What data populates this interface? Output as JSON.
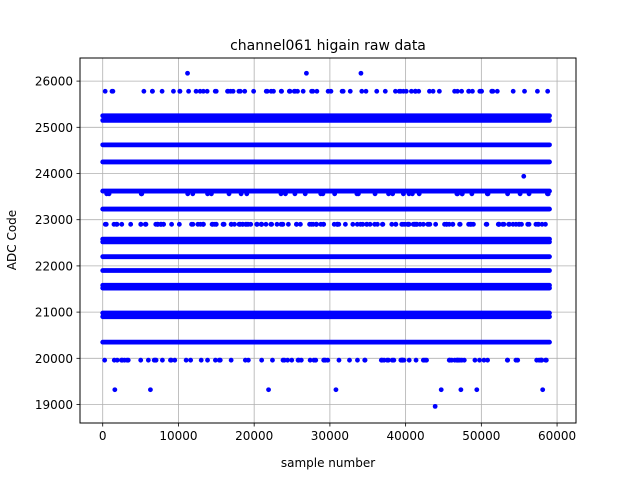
{
  "chart_data": {
    "type": "scatter",
    "title": "channel061 higain raw data",
    "xlabel": "sample number",
    "ylabel": "ADC Code",
    "xlim": [
      -3000,
      62500
    ],
    "ylim": [
      18600,
      26500
    ],
    "xticks": [
      0,
      10000,
      20000,
      30000,
      40000,
      50000,
      60000
    ],
    "yticks": [
      19000,
      20000,
      21000,
      22000,
      23000,
      24000,
      25000,
      26000
    ],
    "grid": true,
    "marker_color": "#0000ff",
    "series": [
      {
        "dense_bands": [
          {
            "y": 25250,
            "x_range": [
              0,
              59000
            ]
          },
          {
            "y": 25150,
            "x_range": [
              0,
              59000
            ]
          },
          {
            "y": 24620,
            "x_range": [
              0,
              59000
            ]
          },
          {
            "y": 24250,
            "x_range": [
              0,
              59000
            ]
          },
          {
            "y": 23620,
            "x_range": [
              0,
              59000
            ]
          },
          {
            "y": 23230,
            "x_range": [
              0,
              59000
            ]
          },
          {
            "y": 22580,
            "x_range": [
              0,
              59000
            ]
          },
          {
            "y": 22520,
            "x_range": [
              0,
              59000
            ]
          },
          {
            "y": 22200,
            "x_range": [
              0,
              59000
            ]
          },
          {
            "y": 21900,
            "x_range": [
              0,
              59000
            ]
          },
          {
            "y": 21580,
            "x_range": [
              0,
              59000
            ]
          },
          {
            "y": 21520,
            "x_range": [
              0,
              59000
            ]
          },
          {
            "y": 20980,
            "x_range": [
              0,
              59000
            ]
          },
          {
            "y": 20900,
            "x_range": [
              0,
              59000
            ]
          },
          {
            "y": 20350,
            "x_range": [
              0,
              59000
            ]
          }
        ],
        "sparse_bands": [
          {
            "y": 25780,
            "x_range": [
              0,
              59000
            ],
            "count": 80
          },
          {
            "y": 23560,
            "x_range": [
              0,
              59000
            ],
            "count": 40
          },
          {
            "y": 22900,
            "x_range": [
              0,
              59000
            ],
            "count": 150
          },
          {
            "y": 19960,
            "x_range": [
              0,
              59000
            ],
            "count": 90
          }
        ],
        "points": [
          {
            "x": 11200,
            "y": 26170
          },
          {
            "x": 26900,
            "y": 26170
          },
          {
            "x": 34100,
            "y": 26170
          },
          {
            "x": 55600,
            "y": 23940
          },
          {
            "x": 1600,
            "y": 19320
          },
          {
            "x": 6300,
            "y": 19320
          },
          {
            "x": 21900,
            "y": 19320
          },
          {
            "x": 30800,
            "y": 19320
          },
          {
            "x": 44700,
            "y": 19320
          },
          {
            "x": 47300,
            "y": 19320
          },
          {
            "x": 49400,
            "y": 19320
          },
          {
            "x": 58100,
            "y": 19320
          },
          {
            "x": 43900,
            "y": 18960
          }
        ]
      }
    ]
  }
}
